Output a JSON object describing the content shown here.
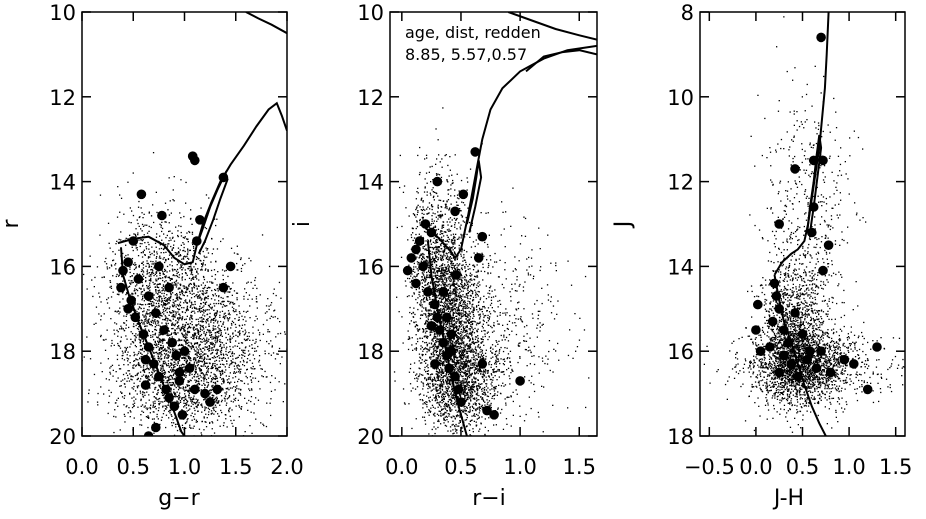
{
  "chart_data": [
    {
      "type": "scatter",
      "xlabel": "g−r",
      "ylabel": "r",
      "xlim": [
        0.0,
        2.0
      ],
      "ylim": [
        20,
        10
      ],
      "y_inverted": true,
      "x_ticks": [
        "0.0",
        "0.5",
        "1.0",
        "1.5",
        "2.0"
      ],
      "x_tick_values": [
        0.0,
        0.5,
        1.0,
        1.5,
        2.0
      ],
      "y_ticks": [
        "10",
        "12",
        "14",
        "16",
        "18",
        "20"
      ],
      "y_tick_values": [
        10,
        12,
        14,
        16,
        18,
        20
      ],
      "field_stars": [
        {
          "x": 0.75,
          "y": 16.6,
          "sx": 0.26,
          "sy": 1.0,
          "n": 1100
        },
        {
          "x": 1.05,
          "y": 17.6,
          "sx": 0.33,
          "sy": 1.05,
          "n": 1500
        },
        {
          "x": 0.9,
          "y": 18.7,
          "sx": 0.3,
          "sy": 0.6,
          "n": 900
        },
        {
          "x": 1.45,
          "y": 18.2,
          "sx": 0.3,
          "sy": 0.9,
          "n": 450
        }
      ],
      "member_stars": [
        [
          0.5,
          15.4
        ],
        [
          0.45,
          15.9
        ],
        [
          0.4,
          16.1
        ],
        [
          0.38,
          16.5
        ],
        [
          0.45,
          17.0
        ],
        [
          0.52,
          17.2
        ],
        [
          0.48,
          16.8
        ],
        [
          0.6,
          17.6
        ],
        [
          0.65,
          17.9
        ],
        [
          0.7,
          18.3
        ],
        [
          0.75,
          18.6
        ],
        [
          0.62,
          18.8
        ],
        [
          0.85,
          19.1
        ],
        [
          0.9,
          19.3
        ],
        [
          0.95,
          18.7
        ],
        [
          1.05,
          18.4
        ],
        [
          1.1,
          18.9
        ],
        [
          1.2,
          19.0
        ],
        [
          0.55,
          16.3
        ],
        [
          0.65,
          16.7
        ],
        [
          0.72,
          17.1
        ],
        [
          0.8,
          17.5
        ],
        [
          0.88,
          17.8
        ],
        [
          1.0,
          18.0
        ],
        [
          0.75,
          16.0
        ],
        [
          0.85,
          16.5
        ],
        [
          0.58,
          14.3
        ],
        [
          0.78,
          14.8
        ],
        [
          1.08,
          13.4
        ],
        [
          1.1,
          13.5
        ],
        [
          1.38,
          13.9
        ],
        [
          1.15,
          14.9
        ],
        [
          1.12,
          15.4
        ],
        [
          1.45,
          16.0
        ],
        [
          1.38,
          16.5
        ],
        [
          0.95,
          18.5
        ],
        [
          1.25,
          19.2
        ],
        [
          0.98,
          19.5
        ],
        [
          0.72,
          19.8
        ],
        [
          0.65,
          20.0
        ],
        [
          0.92,
          18.1
        ],
        [
          0.62,
          18.2
        ],
        [
          1.32,
          18.9
        ],
        [
          0.82,
          18.9
        ]
      ],
      "isochrone": [
        [
          0.35,
          15.45
        ],
        [
          0.5,
          15.35
        ],
        [
          0.65,
          15.3
        ],
        [
          0.8,
          15.5
        ],
        [
          0.9,
          15.8
        ],
        [
          1.0,
          15.95
        ],
        [
          1.08,
          15.9
        ],
        [
          1.12,
          15.5
        ],
        [
          1.18,
          15.0
        ],
        [
          1.26,
          14.5
        ],
        [
          1.35,
          14.0
        ],
        [
          1.45,
          13.6
        ],
        [
          1.58,
          13.15
        ],
        [
          1.7,
          12.7
        ],
        [
          1.82,
          12.3
        ],
        [
          1.9,
          12.15
        ],
        [
          1.95,
          12.45
        ],
        [
          2.0,
          12.8
        ]
      ],
      "isochrone_lower": [
        [
          0.38,
          15.55
        ],
        [
          0.4,
          16.2
        ],
        [
          0.46,
          16.7
        ],
        [
          0.55,
          17.3
        ],
        [
          0.65,
          17.9
        ],
        [
          0.78,
          18.7
        ],
        [
          0.88,
          19.3
        ],
        [
          0.97,
          19.9
        ],
        [
          1.0,
          20.0
        ]
      ],
      "isochrone_branch": [
        [
          1.12,
          15.5
        ],
        [
          1.18,
          15.1
        ],
        [
          1.25,
          14.6
        ],
        [
          1.32,
          14.2
        ],
        [
          1.4,
          13.8
        ],
        [
          1.42,
          13.95
        ],
        [
          1.35,
          14.4
        ],
        [
          1.28,
          14.9
        ],
        [
          1.2,
          15.4
        ],
        [
          1.14,
          15.7
        ]
      ],
      "isochrone_top": [
        [
          1.6,
          10.0
        ],
        [
          1.72,
          10.15
        ],
        [
          1.85,
          10.3
        ],
        [
          2.0,
          10.5
        ]
      ]
    },
    {
      "type": "scatter",
      "xlabel": "r−i",
      "ylabel": "i",
      "xlim": [
        -0.1,
        1.65
      ],
      "ylim": [
        20,
        10
      ],
      "y_inverted": true,
      "x_ticks": [
        "0.0",
        "0.5",
        "1.0",
        "1.5"
      ],
      "x_tick_values": [
        0.0,
        0.5,
        1.0,
        1.5
      ],
      "y_ticks": [
        "10",
        "12",
        "14",
        "16",
        "18",
        "20"
      ],
      "y_tick_values": [
        10,
        12,
        14,
        16,
        18,
        20
      ],
      "annotation": [
        "age, dist, redden",
        "8.85, 5.57,0.57"
      ],
      "field_stars": [
        {
          "x": 0.3,
          "y": 16.0,
          "sx": 0.12,
          "sy": 1.1,
          "n": 1200
        },
        {
          "x": 0.42,
          "y": 17.5,
          "sx": 0.14,
          "sy": 1.0,
          "n": 1800
        },
        {
          "x": 0.5,
          "y": 18.7,
          "sx": 0.16,
          "sy": 0.6,
          "n": 1100
        },
        {
          "x": 0.8,
          "y": 17.5,
          "sx": 0.3,
          "sy": 1.2,
          "n": 500
        }
      ],
      "member_stars": [
        [
          0.05,
          16.1
        ],
        [
          0.08,
          15.8
        ],
        [
          0.12,
          16.4
        ],
        [
          0.15,
          15.4
        ],
        [
          0.18,
          16.0
        ],
        [
          0.22,
          16.6
        ],
        [
          0.25,
          15.2
        ],
        [
          0.28,
          16.9
        ],
        [
          0.3,
          17.2
        ],
        [
          0.32,
          17.5
        ],
        [
          0.35,
          17.8
        ],
        [
          0.38,
          18.1
        ],
        [
          0.4,
          18.4
        ],
        [
          0.42,
          18.0
        ],
        [
          0.45,
          18.6
        ],
        [
          0.48,
          18.9
        ],
        [
          0.3,
          14.0
        ],
        [
          0.45,
          14.7
        ],
        [
          0.52,
          14.3
        ],
        [
          0.62,
          13.3
        ],
        [
          0.68,
          15.3
        ],
        [
          0.65,
          15.8
        ],
        [
          0.68,
          18.3
        ],
        [
          0.72,
          19.4
        ],
        [
          0.78,
          19.5
        ],
        [
          1.0,
          18.7
        ],
        [
          0.12,
          15.6
        ],
        [
          0.2,
          15.0
        ],
        [
          0.25,
          17.4
        ],
        [
          0.35,
          16.6
        ],
        [
          0.38,
          17.2
        ],
        [
          0.28,
          18.3
        ],
        [
          0.42,
          17.6
        ],
        [
          0.5,
          19.2
        ],
        [
          0.46,
          16.2
        ]
      ],
      "isochrone": [
        [
          0.2,
          15.1
        ],
        [
          0.3,
          15.3
        ],
        [
          0.4,
          15.6
        ],
        [
          0.45,
          15.8
        ],
        [
          0.5,
          15.6
        ],
        [
          0.53,
          15.2
        ],
        [
          0.56,
          14.8
        ],
        [
          0.6,
          14.2
        ],
        [
          0.64,
          13.6
        ],
        [
          0.68,
          13.0
        ],
        [
          0.75,
          12.3
        ],
        [
          0.85,
          11.8
        ],
        [
          1.0,
          11.4
        ],
        [
          1.2,
          11.1
        ],
        [
          1.4,
          10.9
        ],
        [
          1.65,
          10.8
        ]
      ],
      "isochrone_lower": [
        [
          0.22,
          15.4
        ],
        [
          0.25,
          16.2
        ],
        [
          0.3,
          17.0
        ],
        [
          0.36,
          17.8
        ],
        [
          0.42,
          18.6
        ],
        [
          0.48,
          19.3
        ],
        [
          0.55,
          20.0
        ]
      ],
      "isochrone_branch": [
        [
          0.55,
          15.0
        ],
        [
          0.6,
          14.4
        ],
        [
          0.63,
          13.9
        ],
        [
          0.65,
          13.5
        ],
        [
          0.67,
          13.9
        ],
        [
          0.62,
          14.6
        ],
        [
          0.57,
          15.2
        ]
      ],
      "isochrone_top": [
        [
          0.9,
          10.0
        ],
        [
          1.1,
          10.2
        ],
        [
          1.3,
          10.4
        ],
        [
          1.5,
          10.55
        ],
        [
          1.65,
          10.65
        ]
      ],
      "isochrone_top2": [
        [
          1.05,
          11.4
        ],
        [
          1.2,
          11.05
        ],
        [
          1.35,
          10.95
        ],
        [
          1.5,
          10.9
        ],
        [
          1.65,
          11.0
        ]
      ]
    },
    {
      "type": "scatter",
      "xlabel": "J-H",
      "ylabel": "J",
      "xlim": [
        -0.6,
        1.6
      ],
      "ylim": [
        18,
        8
      ],
      "y_inverted": true,
      "x_ticks": [
        "−0.5",
        "0.0",
        "0.5",
        "1.0",
        "1.5"
      ],
      "x_tick_values": [
        -0.5,
        0.0,
        0.5,
        1.0,
        1.5
      ],
      "y_ticks": [
        "8",
        "10",
        "12",
        "14",
        "16",
        "18"
      ],
      "y_tick_values": [
        8,
        10,
        12,
        14,
        16,
        18
      ],
      "field_stars": [
        {
          "x": 0.4,
          "y": 15.6,
          "sx": 0.18,
          "sy": 0.9,
          "n": 1300
        },
        {
          "x": 0.5,
          "y": 16.3,
          "sx": 0.25,
          "sy": 0.45,
          "n": 1500
        },
        {
          "x": 0.55,
          "y": 13.0,
          "sx": 0.25,
          "sy": 1.6,
          "n": 500
        },
        {
          "x": 0.6,
          "y": 16.4,
          "sx": 0.45,
          "sy": 0.35,
          "n": 500
        }
      ],
      "member_stars": [
        [
          0.7,
          8.6
        ],
        [
          0.62,
          11.5
        ],
        [
          0.72,
          11.5
        ],
        [
          0.42,
          11.7
        ],
        [
          0.25,
          13.0
        ],
        [
          0.62,
          12.6
        ],
        [
          0.6,
          13.2
        ],
        [
          0.78,
          13.5
        ],
        [
          0.72,
          14.1
        ],
        [
          0.2,
          14.4
        ],
        [
          0.22,
          14.7
        ],
        [
          0.25,
          15.0
        ],
        [
          0.18,
          15.3
        ],
        [
          0.3,
          15.5
        ],
        [
          0.35,
          15.8
        ],
        [
          0.3,
          16.1
        ],
        [
          0.38,
          16.3
        ],
        [
          0.25,
          16.5
        ],
        [
          0.45,
          16.6
        ],
        [
          0.55,
          16.2
        ],
        [
          0.65,
          16.4
        ],
        [
          0.7,
          16.0
        ],
        [
          0.95,
          16.2
        ],
        [
          1.05,
          16.3
        ],
        [
          1.2,
          16.9
        ],
        [
          1.3,
          15.9
        ],
        [
          0.0,
          15.5
        ],
        [
          0.02,
          14.9
        ],
        [
          0.05,
          16.0
        ],
        [
          0.15,
          15.9
        ],
        [
          0.42,
          15.1
        ],
        [
          0.5,
          15.6
        ],
        [
          0.8,
          16.5
        ],
        [
          0.58,
          16.0
        ]
      ],
      "isochrone": [
        [
          0.2,
          14.2
        ],
        [
          0.28,
          13.9
        ],
        [
          0.38,
          13.7
        ],
        [
          0.45,
          13.6
        ],
        [
          0.52,
          13.4
        ],
        [
          0.56,
          13.0
        ],
        [
          0.6,
          12.4
        ],
        [
          0.64,
          11.8
        ],
        [
          0.68,
          11.2
        ],
        [
          0.71,
          10.5
        ],
        [
          0.74,
          9.8
        ],
        [
          0.76,
          9.0
        ],
        [
          0.78,
          8.0
        ]
      ],
      "isochrone_lower": [
        [
          0.2,
          14.2
        ],
        [
          0.25,
          14.8
        ],
        [
          0.3,
          15.3
        ],
        [
          0.38,
          15.8
        ],
        [
          0.45,
          16.3
        ],
        [
          0.52,
          16.8
        ],
        [
          0.6,
          17.3
        ],
        [
          0.68,
          17.7
        ],
        [
          0.75,
          18.0
        ]
      ],
      "isochrone_branch": [
        [
          0.55,
          13.2
        ],
        [
          0.58,
          12.6
        ],
        [
          0.62,
          12.0
        ],
        [
          0.65,
          11.4
        ],
        [
          0.68,
          10.9
        ],
        [
          0.7,
          11.2
        ],
        [
          0.66,
          11.9
        ],
        [
          0.62,
          12.6
        ],
        [
          0.58,
          13.2
        ]
      ]
    }
  ]
}
